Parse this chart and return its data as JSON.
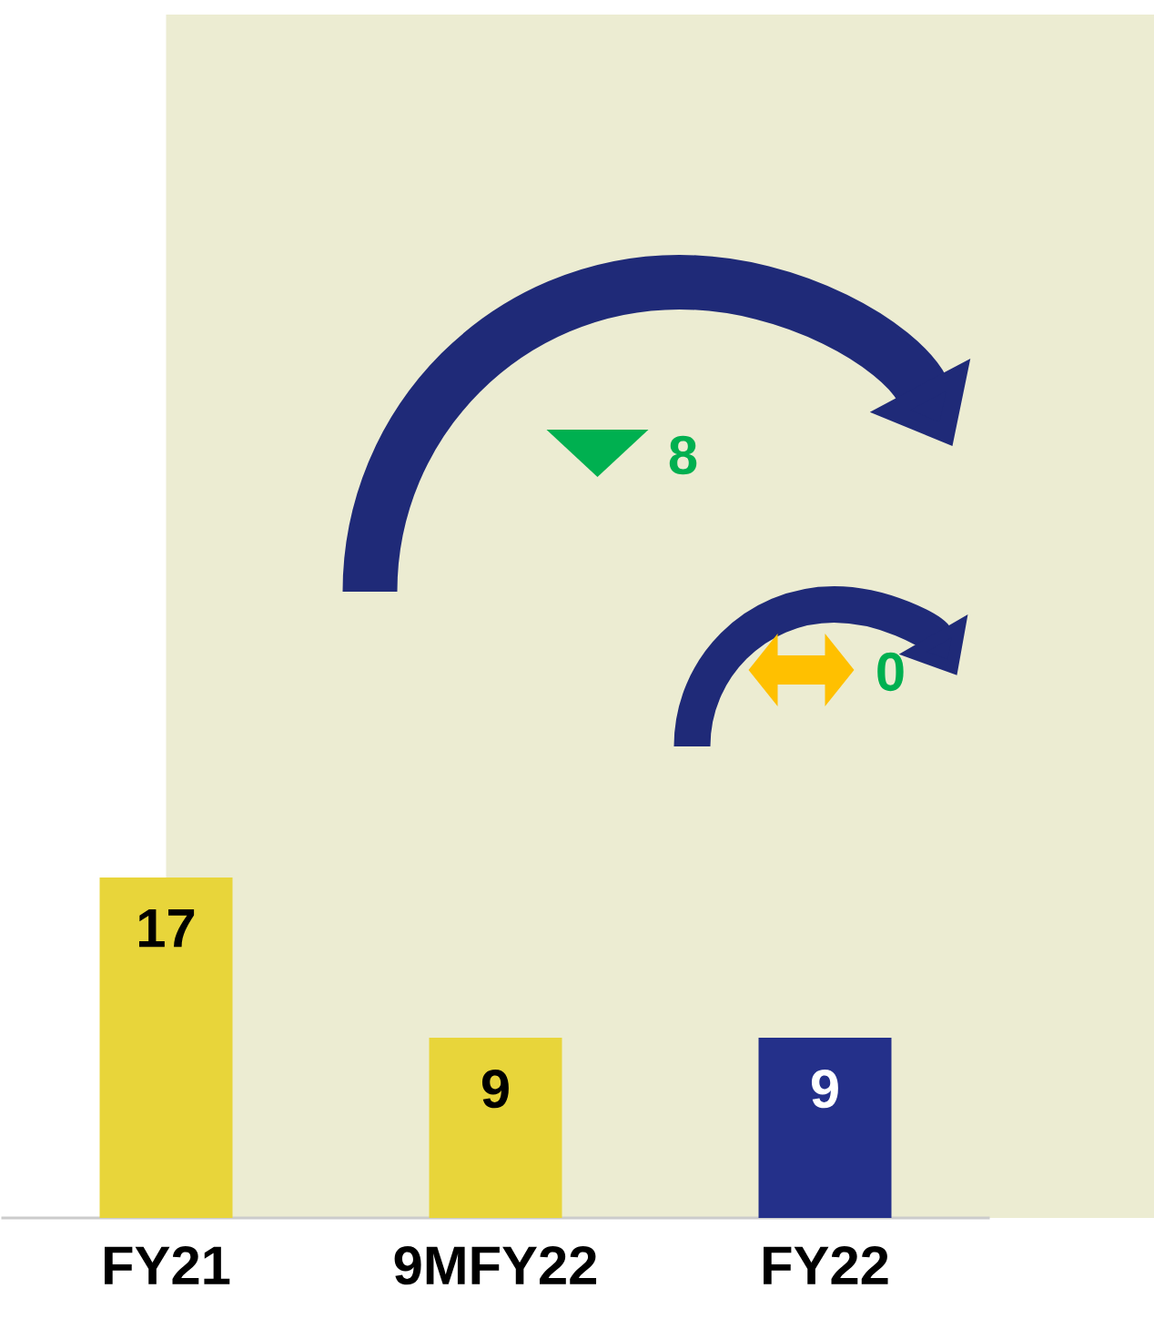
{
  "chart_data": {
    "type": "bar",
    "categories": [
      "FY21",
      "9MFY22",
      "FY22"
    ],
    "values": [
      17,
      9,
      9
    ],
    "colors": [
      "#e8d53a",
      "#e8d53a",
      "#24308a"
    ],
    "data_labels": true,
    "annotations": [
      "8",
      "0"
    ]
  }
}
